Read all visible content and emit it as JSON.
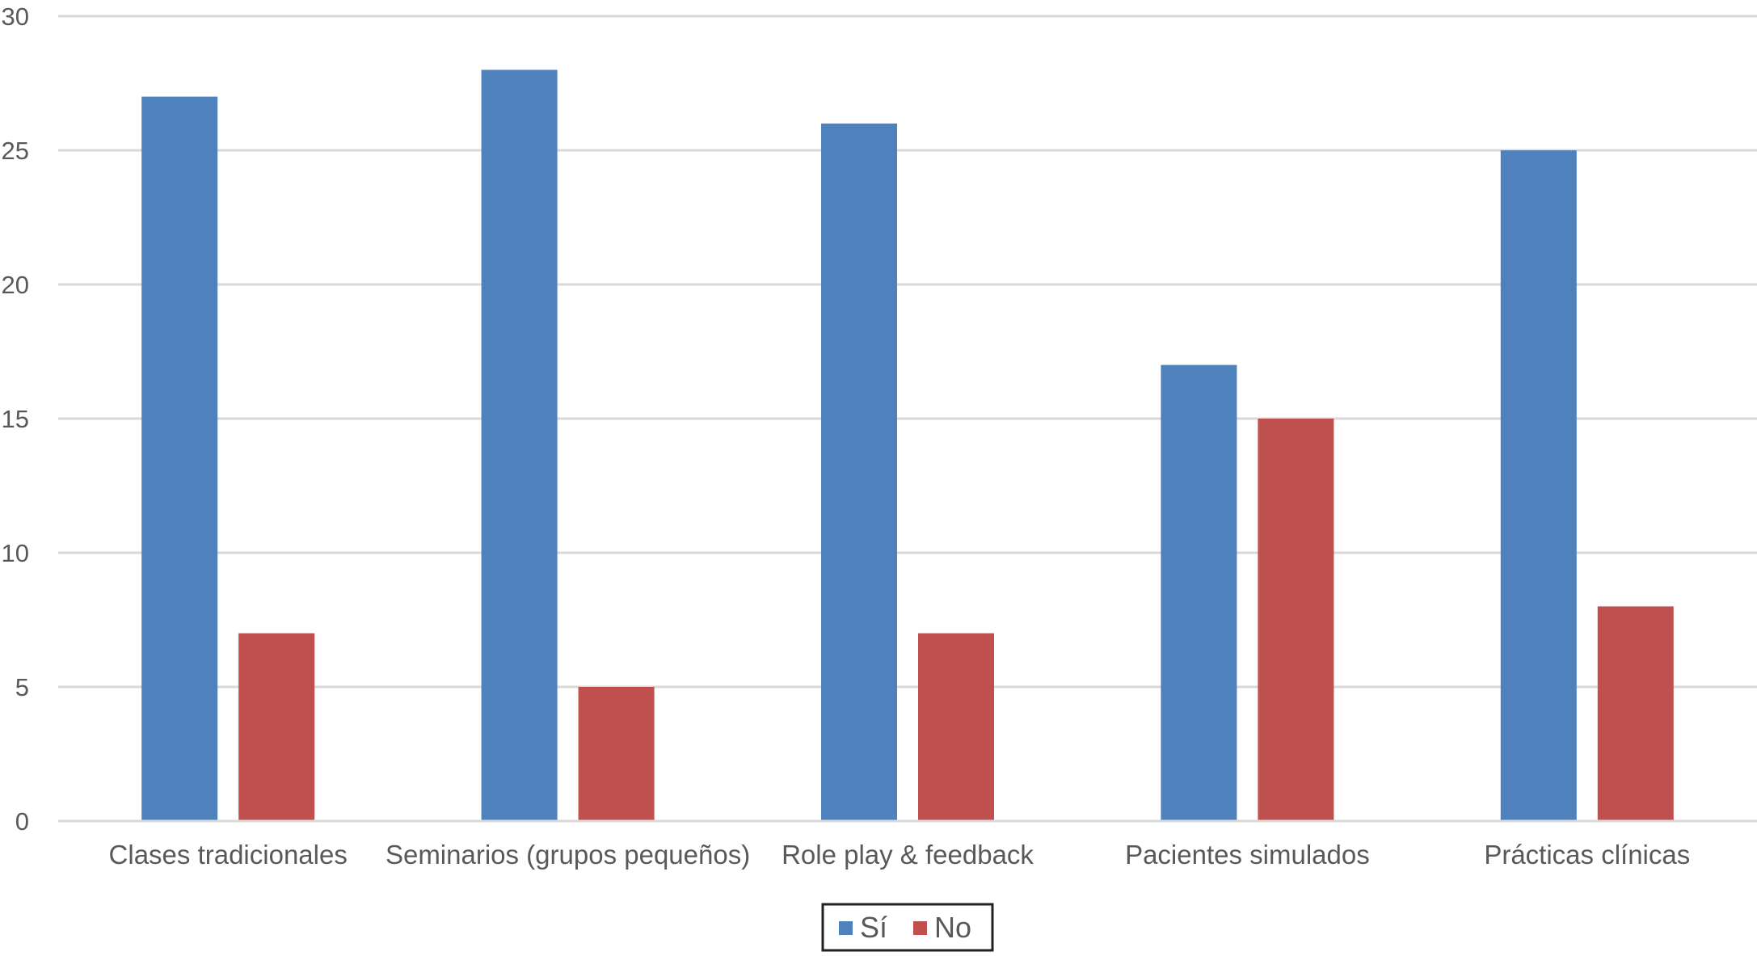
{
  "chart_data": {
    "type": "bar",
    "title": "",
    "xlabel": "",
    "ylabel": "",
    "categories": [
      "Clases tradicionales",
      "Seminarios (grupos pequeños)",
      "Role play & feedback",
      "Pacientes simulados",
      "Prácticas clínicas"
    ],
    "series": [
      {
        "name": "Sí",
        "values": [
          27,
          28,
          26,
          17,
          25
        ],
        "color": "#4F81BD"
      },
      {
        "name": "No",
        "values": [
          7,
          5,
          7,
          15,
          8
        ],
        "color": "#C0504D"
      }
    ],
    "ylim": [
      0,
      30
    ],
    "yticks": [
      0,
      5,
      10,
      15,
      20,
      25,
      30
    ],
    "grid": true,
    "legend": "bottom-center"
  }
}
